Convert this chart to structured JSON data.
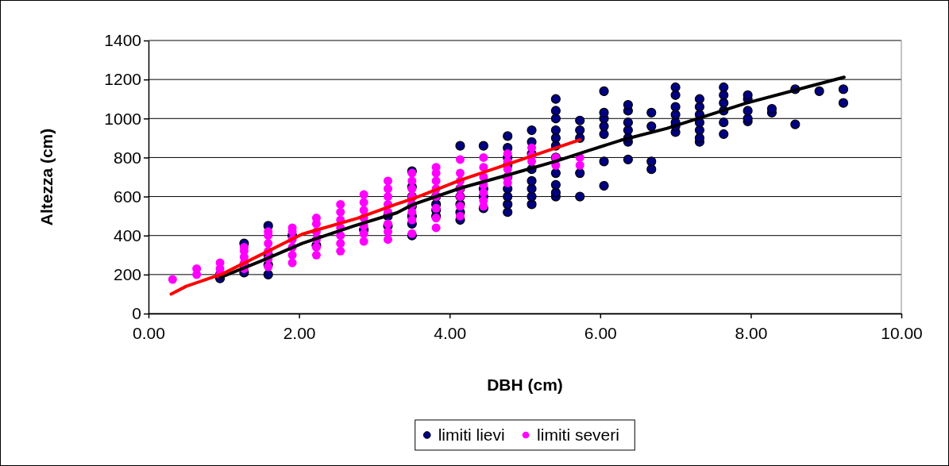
{
  "chart_data": {
    "type": "scatter",
    "xlabel": "DBH (cm)",
    "ylabel": "Altezza (cm)",
    "xlim": [
      0,
      10
    ],
    "xticks": [
      {
        "value": 0,
        "label": "0.00"
      },
      {
        "value": 2,
        "label": "2.00"
      },
      {
        "value": 4,
        "label": "4.00"
      },
      {
        "value": 6,
        "label": "6.00"
      },
      {
        "value": 8,
        "label": "8.00"
      },
      {
        "value": 10,
        "label": "10.00"
      }
    ],
    "ylim": [
      0,
      1400
    ],
    "yticks": [
      0,
      200,
      400,
      600,
      800,
      1000,
      1200,
      1400
    ],
    "grid": "y",
    "legend": "bottom",
    "marker": "circle",
    "series": [
      {
        "name": "limiti lievi",
        "color": "#000080",
        "x": [
          0.95,
          0.95,
          1.27,
          1.27,
          1.27,
          1.59,
          1.59,
          1.59,
          1.59,
          1.91,
          2.23,
          2.86,
          3.18,
          3.18,
          3.5,
          3.5,
          3.5,
          3.5,
          3.5,
          3.5,
          3.5,
          3.82,
          3.82,
          3.82,
          3.82,
          4.14,
          4.14,
          4.14,
          4.14,
          4.14,
          4.14,
          4.45,
          4.45,
          4.45,
          4.45,
          4.77,
          4.77,
          4.77,
          4.77,
          4.77,
          4.77,
          4.77,
          4.77,
          4.77,
          5.09,
          5.09,
          5.09,
          5.09,
          5.09,
          5.09,
          5.09,
          5.09,
          5.41,
          5.41,
          5.41,
          5.41,
          5.41,
          5.41,
          5.41,
          5.41,
          5.41,
          5.41,
          5.41,
          5.73,
          5.73,
          5.73,
          5.73,
          5.73,
          6.05,
          6.05,
          6.05,
          6.05,
          6.05,
          6.05,
          6.05,
          6.37,
          6.37,
          6.37,
          6.37,
          6.37,
          6.37,
          6.37,
          6.68,
          6.68,
          6.68,
          6.68,
          7.0,
          7.0,
          7.0,
          7.0,
          7.0,
          7.0,
          7.0,
          7.32,
          7.32,
          7.32,
          7.32,
          7.32,
          7.32,
          7.32,
          7.64,
          7.64,
          7.64,
          7.64,
          7.64,
          7.64,
          7.96,
          7.96,
          7.96,
          7.96,
          7.96,
          8.28,
          8.28,
          8.59,
          8.59,
          8.91,
          9.23,
          9.23
        ],
        "values": [
          180,
          200,
          210,
          250,
          360,
          200,
          250,
          300,
          450,
          400,
          350,
          430,
          450,
          500,
          400,
          460,
          500,
          550,
          600,
          650,
          730,
          500,
          530,
          560,
          600,
          480,
          520,
          560,
          600,
          640,
          860,
          540,
          600,
          640,
          860,
          520,
          560,
          600,
          640,
          700,
          760,
          800,
          850,
          910,
          560,
          600,
          640,
          680,
          740,
          820,
          880,
          940,
          600,
          620,
          660,
          720,
          800,
          860,
          900,
          940,
          1000,
          1040,
          1100,
          600,
          720,
          900,
          940,
          990,
          655,
          780,
          920,
          960,
          1000,
          1030,
          1140,
          790,
          880,
          900,
          940,
          980,
          1040,
          1070,
          740,
          780,
          960,
          1030,
          930,
          960,
          980,
          1020,
          1060,
          1120,
          1160,
          880,
          900,
          940,
          980,
          1020,
          1060,
          1100,
          920,
          980,
          1040,
          1080,
          1120,
          1160,
          985,
          1000,
          1040,
          1100,
          1120,
          1030,
          1050,
          970,
          1150,
          1140,
          1080,
          1150
        ]
      },
      {
        "name": "limiti severi",
        "color": "#ff00ff",
        "x": [
          0.32,
          0.64,
          0.64,
          0.95,
          0.95,
          0.95,
          1.27,
          1.27,
          1.27,
          1.27,
          1.27,
          1.59,
          1.59,
          1.59,
          1.59,
          1.59,
          1.59,
          1.91,
          1.91,
          1.91,
          1.91,
          1.91,
          1.91,
          2.23,
          2.23,
          2.23,
          2.23,
          2.23,
          2.23,
          2.55,
          2.55,
          2.55,
          2.55,
          2.55,
          2.55,
          2.55,
          2.86,
          2.86,
          2.86,
          2.86,
          2.86,
          2.86,
          2.86,
          3.18,
          3.18,
          3.18,
          3.18,
          3.18,
          3.18,
          3.18,
          3.18,
          3.5,
          3.5,
          3.5,
          3.5,
          3.5,
          3.5,
          3.5,
          3.5,
          3.82,
          3.82,
          3.82,
          3.82,
          3.82,
          3.82,
          3.82,
          3.82,
          4.14,
          4.14,
          4.14,
          4.14,
          4.14,
          4.14,
          4.14,
          4.45,
          4.45,
          4.45,
          4.45,
          4.45,
          4.45,
          4.45,
          4.77,
          4.77,
          4.77,
          4.77,
          4.77,
          5.09,
          5.09,
          5.09,
          5.41,
          5.41,
          5.73,
          5.73
        ],
        "values": [
          175,
          200,
          230,
          200,
          230,
          260,
          230,
          260,
          290,
          320,
          340,
          240,
          280,
          320,
          360,
          400,
          420,
          260,
          300,
          340,
          380,
          420,
          440,
          300,
          340,
          380,
          420,
          460,
          490,
          320,
          360,
          400,
          440,
          480,
          520,
          560,
          370,
          410,
          450,
          490,
          530,
          570,
          610,
          380,
          420,
          460,
          520,
          560,
          600,
          640,
          680,
          410,
          480,
          520,
          560,
          600,
          640,
          680,
          720,
          440,
          490,
          540,
          600,
          640,
          680,
          720,
          750,
          500,
          550,
          600,
          640,
          680,
          720,
          790,
          550,
          580,
          620,
          660,
          700,
          750,
          800,
          670,
          700,
          740,
          780,
          820,
          780,
          810,
          850,
          760,
          800,
          760,
          800
        ]
      },
      {
        "type": "line",
        "marker": "none",
        "color": "#000000",
        "x": [
          0.95,
          1.5,
          2.04,
          2.72,
          3.3,
          3.52,
          4.15,
          4.77,
          5.41,
          5.83,
          6.27,
          6.89,
          7.94,
          9.24
        ],
        "values": [
          185,
          270,
          360,
          448,
          517,
          560,
          644,
          710,
          781,
          834,
          888,
          950,
          1079,
          1212
        ]
      },
      {
        "type": "line",
        "marker": "none",
        "color": "#ff0000",
        "x": [
          0.3,
          0.5,
          0.98,
          2.04,
          2.77,
          3.3,
          3.52,
          4.15,
          4.77,
          5.73
        ],
        "values": [
          100,
          140,
          203,
          407,
          488,
          562,
          590,
          685,
          766,
          891
        ]
      }
    ]
  }
}
